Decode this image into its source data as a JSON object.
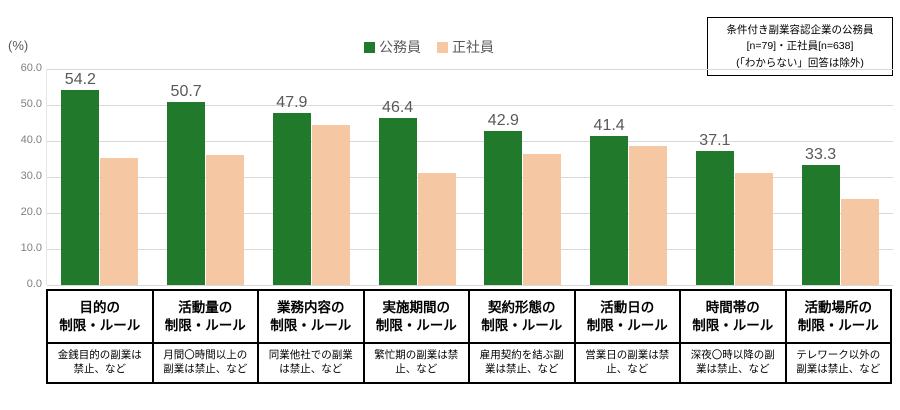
{
  "y_axis": {
    "unit": "(%)"
  },
  "legend": {
    "items": [
      {
        "label": "公務員",
        "color": "#217a2b"
      },
      {
        "label": "正社員",
        "color": "#f5c7a3"
      }
    ]
  },
  "note_box": {
    "lines": [
      "条件付き副業容認企業の公務員",
      "[n=79]・正社員[n=638]",
      "(「わからない」回答は除外)"
    ]
  },
  "chart_data": {
    "type": "bar",
    "title": "",
    "categories": [
      "目的の\n制限・ルール",
      "活動量の\n制限・ルール",
      "業務内容の\n制限・ルール",
      "実施期間の\n制限・ルール",
      "契約形態の\n制限・ルール",
      "活動日の\n制限・ルール",
      "時間帯の\n制限・ルール",
      "活動場所の\n制限・ルール"
    ],
    "category_sublabels": [
      "金銭目的の副業は\n禁止、など",
      "月間〇時間以上の\n副業は禁止、など",
      "同業他社での副業\nは禁止、など",
      "繁忙期の副業は禁\n止、など",
      "雇用契約を結ぶ副\n業は禁止、など",
      "営業日の副業は禁\n止、など",
      "深夜〇時以降の副\n業は禁止、など",
      "テレワーク以外の\n副業は禁止、など"
    ],
    "series": [
      {
        "name": "公務員",
        "key": "civil-servant",
        "color": "#217a2b",
        "data_labels": true,
        "values": [
          54.2,
          50.7,
          47.9,
          46.4,
          42.9,
          41.4,
          37.1,
          33.3
        ]
      },
      {
        "name": "正社員",
        "key": "regular-employee",
        "color": "#f5c7a3",
        "data_labels": false,
        "values": [
          35.3,
          36.0,
          44.5,
          31.0,
          36.5,
          38.5,
          31.2,
          24.0
        ]
      }
    ],
    "xlabel": "",
    "ylabel": "(%)",
    "ylim": [
      0,
      60
    ],
    "yticks": [
      60,
      50,
      40,
      30,
      20,
      10,
      0
    ],
    "ytick_labels": [
      "60.0",
      "50.0",
      "40.0",
      "30.0",
      "20.0",
      "10.0",
      "0.0"
    ],
    "grid": true,
    "legend_position": "top-center",
    "annotation": "条件付き副業容認企業の公務員[n=79]・正社員[n=638](「わからない」回答は除外)"
  }
}
